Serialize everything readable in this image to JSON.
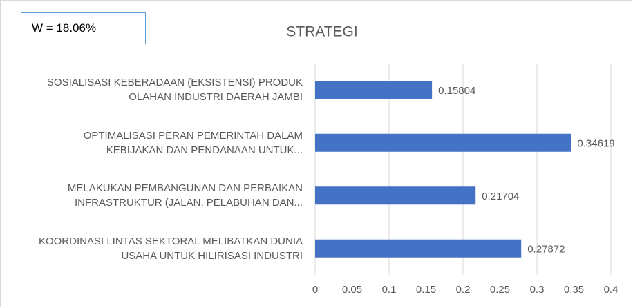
{
  "chart_data": {
    "type": "bar",
    "orientation": "horizontal",
    "title": "STRATEGI",
    "annotation": "W = 18.06%",
    "categories": [
      "SOSIALISASI KEBERADAAN (EKSISTENSI) PRODUK OLAHAN INDUSTRI DAERAH JAMBI",
      "OPTIMALISASI PERAN PEMERINTAH DALAM KEBIJAKAN DAN PENDANAAN UNTUK...",
      "MELAKUKAN PEMBANGUNAN DAN PERBAIKAN INFRASTRUKTUR (JALAN, PELABUHAN DAN...",
      "KOORDINASI LINTAS SEKTORAL MELIBATKAN DUNIA USAHA UNTUK HILIRISASI INDUSTRI"
    ],
    "values": [
      0.15804,
      0.34619,
      0.21704,
      0.27872
    ],
    "color": "#4472c4",
    "xlim": [
      0,
      0.4
    ],
    "xticks": [
      0,
      0.05,
      0.1,
      0.15,
      0.2,
      0.25,
      0.3,
      0.35,
      0.4
    ],
    "grid": true
  }
}
